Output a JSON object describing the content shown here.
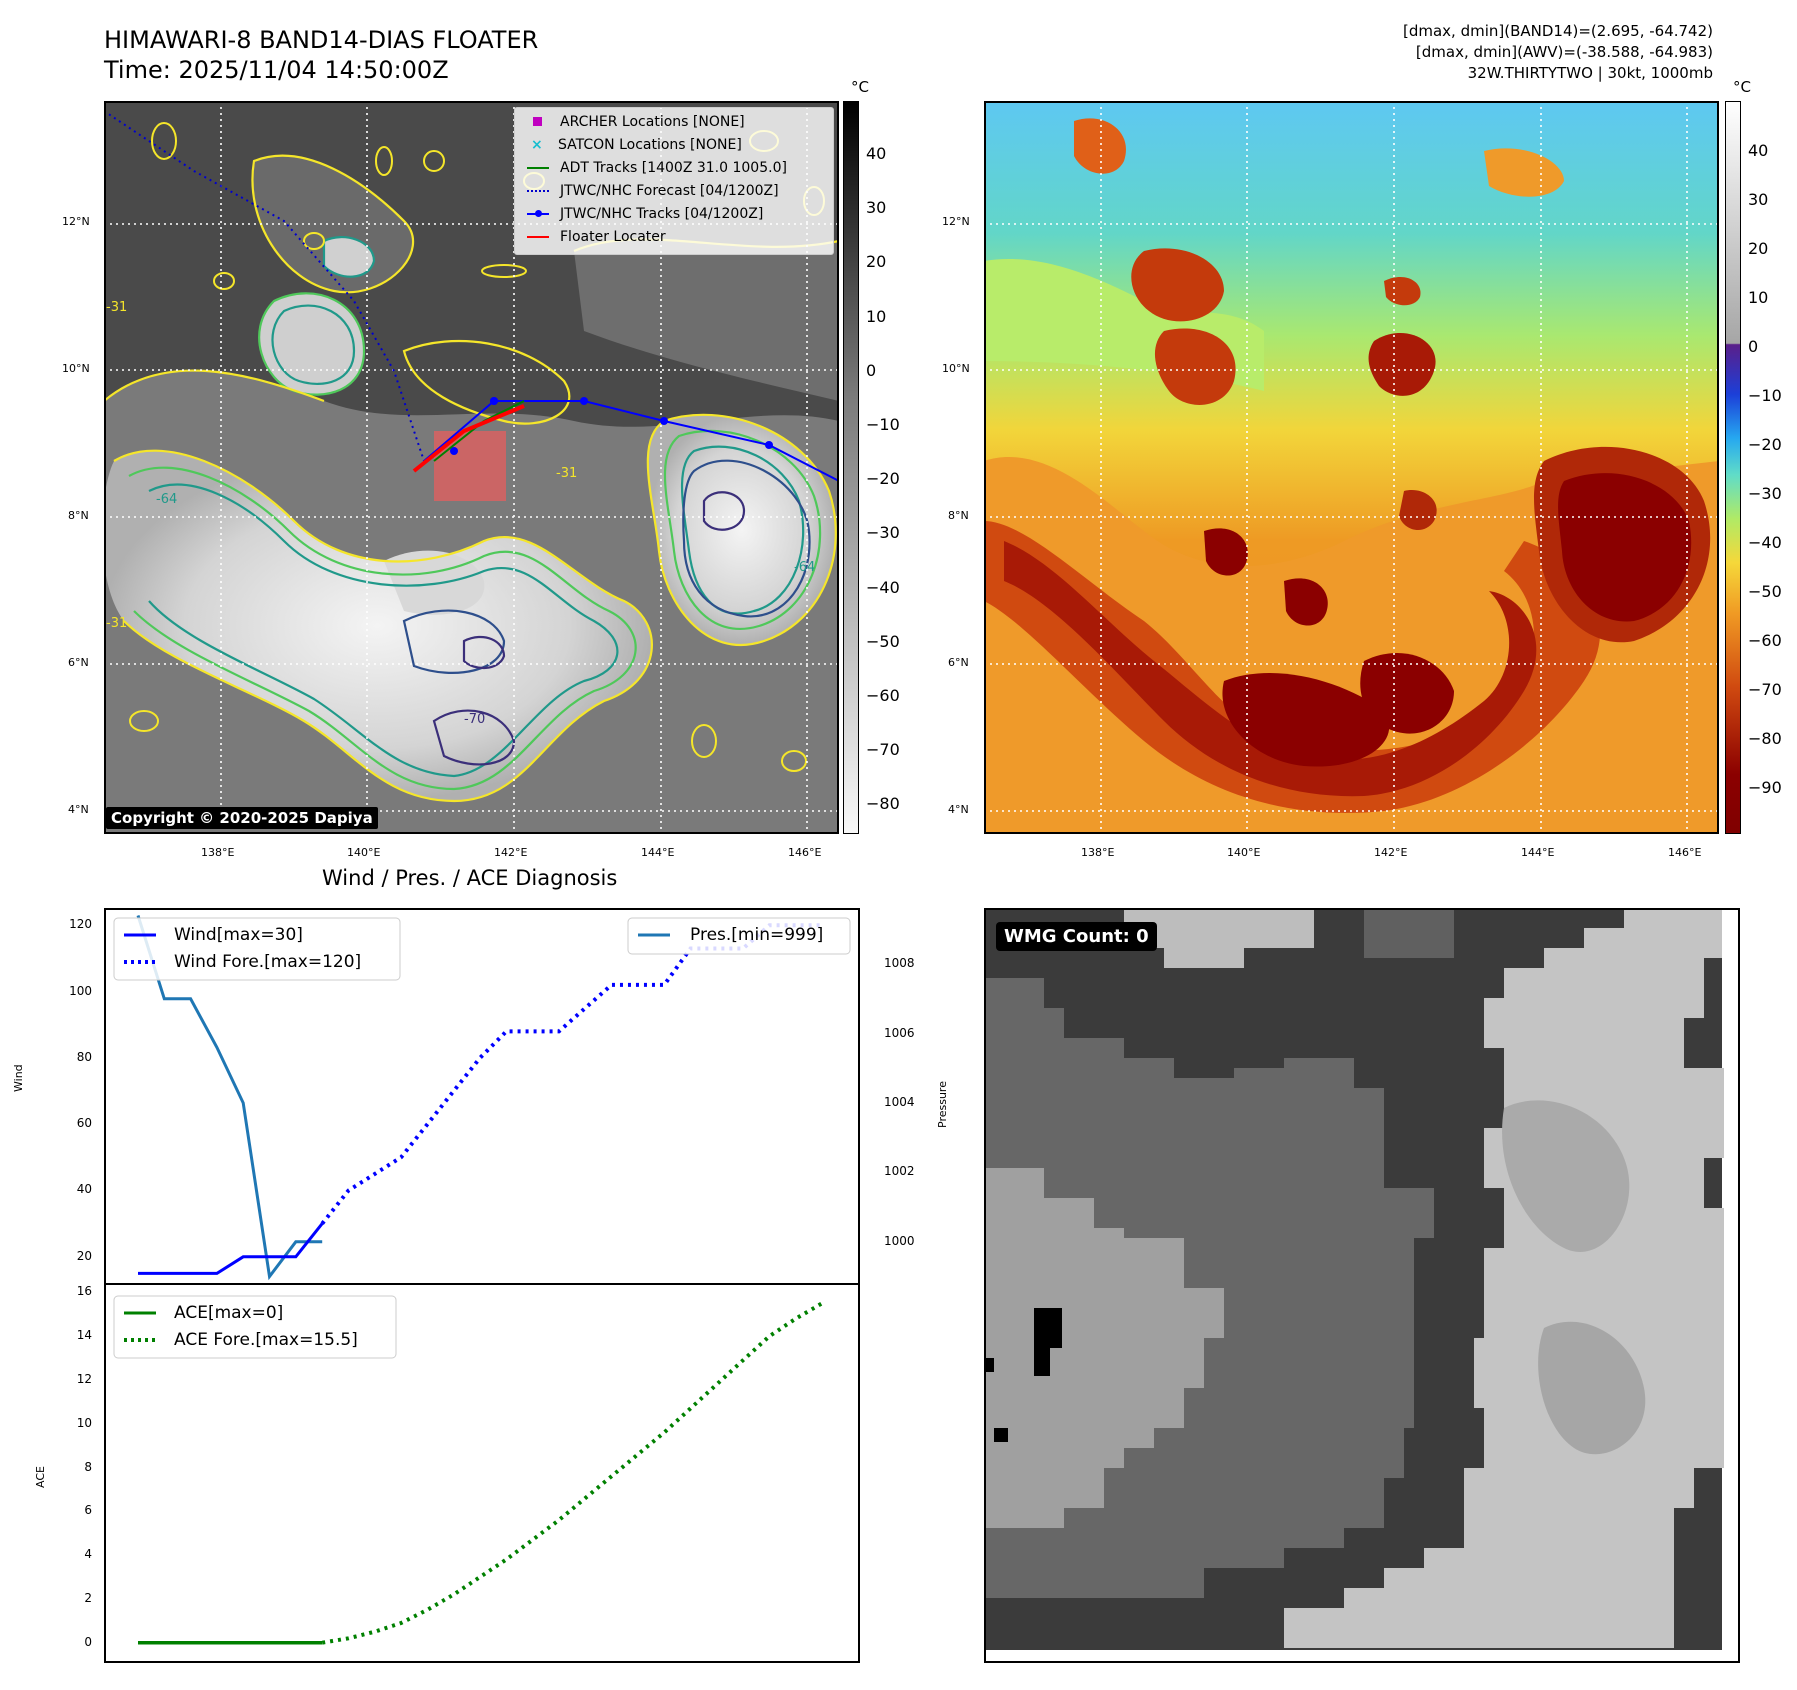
{
  "header": {
    "title_line1": "HIMAWARI-8 BAND14-DIAS FLOATER",
    "title_line2": "Time: 2025/11/04 14:50:00Z",
    "stats_line1": "[dmax, dmin](BAND14)=(2.695, -64.742)",
    "stats_line2": "[dmax, dmin](AWV)=(-38.588, -64.983)",
    "stats_line3": "32W.THIRTYTWO | 30kt, 1000mb"
  },
  "map_axes": {
    "lat_labels": [
      "12°N",
      "10°N",
      "8°N",
      "6°N",
      "4°N"
    ],
    "lon_labels": [
      "138°E",
      "140°E",
      "142°E",
      "144°E",
      "146°E"
    ]
  },
  "ir_panel": {
    "colorbar_unit": "°C",
    "colorbar_ticks": [
      "40",
      "30",
      "20",
      "10",
      "0",
      "−10",
      "−20",
      "−30",
      "−40",
      "−50",
      "−60",
      "−70",
      "−80"
    ],
    "copyright": "Copyright © 2020-2025 Dapiya",
    "contour_labels": [
      "-31",
      "-64",
      "-31",
      "-31",
      "-70",
      "-64"
    ],
    "legend": [
      {
        "label": "ARCHER Locations [NONE]",
        "color": "#c000c0"
      },
      {
        "label": "SATCON Locations [NONE]",
        "color": "#17becf"
      },
      {
        "label": "ADT Tracks [1400Z 31.0 1005.0]",
        "color": "#008000"
      },
      {
        "label": "JTWC/NHC Forecast [04/1200Z]",
        "color": "#0000cc"
      },
      {
        "label": "JTWC/NHC Tracks [04/1200Z]",
        "color": "#0000ff"
      },
      {
        "label": "Floater Locater",
        "color": "#ff0000"
      }
    ]
  },
  "awv_panel": {
    "colorbar_unit": "°C",
    "colorbar_ticks": [
      "40",
      "30",
      "20",
      "10",
      "0",
      "−10",
      "−20",
      "−30",
      "−40",
      "−50",
      "−60",
      "−70",
      "−80",
      "−90"
    ]
  },
  "diagnosis": {
    "title": "Wind / Pres. / ACE Diagnosis",
    "wind_ylabel": "Wind",
    "pressure_ylabel": "Pressure",
    "ace_ylabel": "ACE",
    "wind_ticks": [
      "120",
      "100",
      "80",
      "60",
      "40",
      "20"
    ],
    "pressure_ticks": [
      "1008",
      "1006",
      "1004",
      "1002",
      "1000"
    ],
    "ace_ticks": [
      "16",
      "14",
      "12",
      "10",
      "8",
      "6",
      "4",
      "2",
      "0"
    ],
    "legend_wind": "Wind[max=30]",
    "legend_wind_fore": "Wind Fore.[max=120]",
    "legend_pres": "Pres.[min=999]",
    "legend_ace": "ACE[max=0]",
    "legend_ace_fore": "ACE Fore.[max=15.5]"
  },
  "wmg_panel": {
    "label": "WMG Count: 0"
  },
  "chart_data": [
    {
      "type": "line",
      "title": "Wind / Pres. / ACE Diagnosis",
      "ylabel": "Wind",
      "ylim": [
        13,
        124
      ],
      "series": [
        {
          "name": "Wind[max=30]",
          "color": "#0000ff",
          "x": [
            0,
            1,
            2,
            3,
            4,
            5,
            6,
            7
          ],
          "values": [
            15,
            15,
            15,
            15,
            20,
            20,
            20,
            30
          ]
        },
        {
          "name": "Wind Fore.[max=120]",
          "color": "#0000ff",
          "style": "dotted",
          "x": [
            7,
            8,
            9,
            10,
            11,
            12,
            13,
            14,
            15,
            16,
            17,
            18,
            19,
            20,
            21,
            22,
            23,
            24,
            25,
            26
          ],
          "values": [
            30,
            40,
            45,
            50,
            60,
            70,
            80,
            88,
            88,
            88,
            95,
            102,
            102,
            102,
            113,
            113,
            113,
            120,
            120,
            120
          ]
        }
      ]
    },
    {
      "type": "line",
      "ylabel": "Pressure",
      "ylim": [
        998.9,
        1009.5
      ],
      "series": [
        {
          "name": "Pres.[min=999]",
          "color": "#1f77b4",
          "x": [
            0,
            1,
            2,
            3,
            4,
            5,
            6,
            6.5,
            7
          ],
          "values": [
            1009.4,
            1007.0,
            1007.0,
            1005.6,
            1004.0,
            999.0,
            1000.0,
            1000.0,
            1000.0
          ]
        }
      ]
    },
    {
      "type": "line",
      "ylabel": "ACE",
      "ylim": [
        -0.7,
        16.2
      ],
      "series": [
        {
          "name": "ACE[max=0]",
          "color": "#008000",
          "x": [
            0,
            1,
            2,
            3,
            4,
            5,
            6,
            7
          ],
          "values": [
            0,
            0,
            0,
            0,
            0,
            0,
            0,
            0
          ]
        },
        {
          "name": "ACE Fore.[max=15.5]",
          "color": "#008000",
          "style": "dotted",
          "x": [
            7,
            8,
            9,
            10,
            11,
            12,
            13,
            14,
            15,
            16,
            17,
            18,
            19,
            20,
            21,
            22,
            23,
            24,
            25,
            26
          ],
          "values": [
            0,
            0.2,
            0.5,
            0.9,
            1.5,
            2.2,
            3.0,
            3.8,
            4.7,
            5.6,
            6.6,
            7.6,
            8.6,
            9.6,
            10.7,
            11.8,
            12.9,
            14.0,
            14.8,
            15.5
          ]
        }
      ]
    }
  ]
}
